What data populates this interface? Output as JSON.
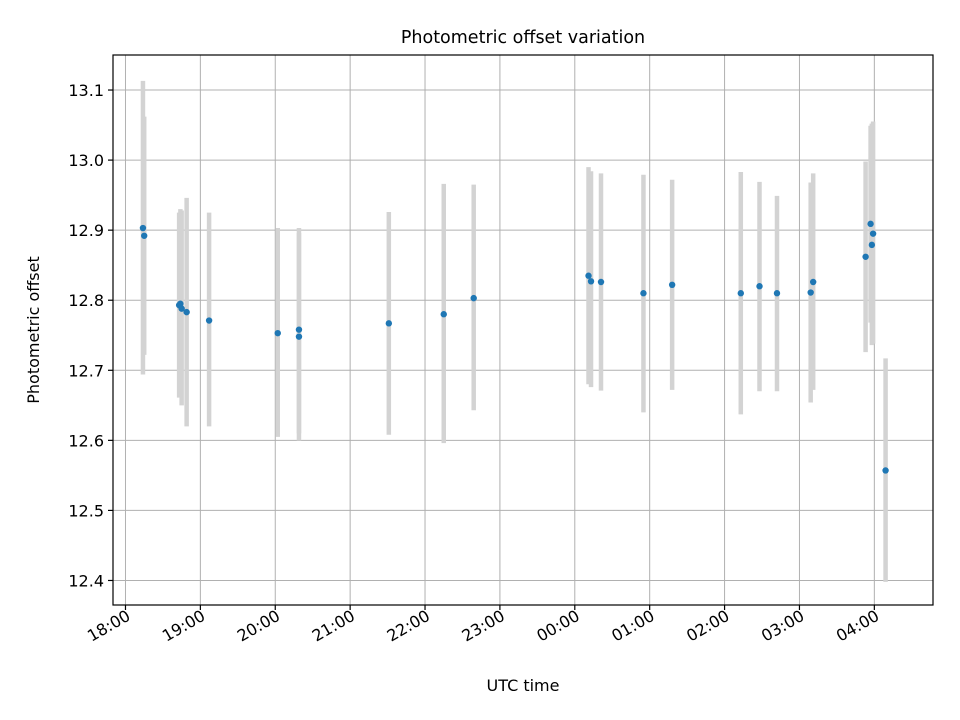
{
  "chart_data": {
    "type": "scatter",
    "title": "Photometric offset variation",
    "xlabel": "UTC time",
    "ylabel": "Photometric offset",
    "x_axis_type": "time",
    "xlim": [
      "17:50",
      "04:47"
    ],
    "ylim": [
      12.365,
      13.15
    ],
    "xticks": [
      "18:00",
      "19:00",
      "20:00",
      "21:00",
      "22:00",
      "23:00",
      "00:00",
      "01:00",
      "02:00",
      "03:00",
      "04:00"
    ],
    "yticks": [
      "12.4",
      "12.5",
      "12.6",
      "12.7",
      "12.8",
      "12.9",
      "13.0",
      "13.1"
    ],
    "grid": true,
    "marker_color": "#1f77b4",
    "errorbar_color": "#d3d3d3",
    "points": [
      {
        "t": "18:14",
        "y": 12.903,
        "lo": 12.694,
        "hi": 13.113
      },
      {
        "t": "18:15",
        "y": 12.892,
        "lo": 12.722,
        "hi": 13.062
      },
      {
        "t": "18:43",
        "y": 12.793,
        "lo": 12.661,
        "hi": 12.925
      },
      {
        "t": "18:44",
        "y": 12.795,
        "lo": 12.663,
        "hi": 12.93
      },
      {
        "t": "18:45",
        "y": 12.788,
        "lo": 12.65,
        "hi": 12.928
      },
      {
        "t": "18:49",
        "y": 12.783,
        "lo": 12.62,
        "hi": 12.946
      },
      {
        "t": "19:07",
        "y": 12.771,
        "lo": 12.62,
        "hi": 12.925
      },
      {
        "t": "20:02",
        "y": 12.753,
        "lo": 12.605,
        "hi": 12.903
      },
      {
        "t": "20:19",
        "y": 12.758,
        "lo": 12.61,
        "hi": 12.903
      },
      {
        "t": "20:19",
        "y": 12.748,
        "lo": 12.6,
        "hi": 12.896
      },
      {
        "t": "21:31",
        "y": 12.767,
        "lo": 12.608,
        "hi": 12.926
      },
      {
        "t": "22:15",
        "y": 12.78,
        "lo": 12.596,
        "hi": 12.966
      },
      {
        "t": "22:39",
        "y": 12.803,
        "lo": 12.643,
        "hi": 12.965
      },
      {
        "t": "00:11",
        "y": 12.835,
        "lo": 12.68,
        "hi": 12.99
      },
      {
        "t": "00:13",
        "y": 12.827,
        "lo": 12.676,
        "hi": 12.984
      },
      {
        "t": "00:21",
        "y": 12.826,
        "lo": 12.671,
        "hi": 12.981
      },
      {
        "t": "00:55",
        "y": 12.81,
        "lo": 12.64,
        "hi": 12.979
      },
      {
        "t": "01:18",
        "y": 12.822,
        "lo": 12.672,
        "hi": 12.972
      },
      {
        "t": "02:13",
        "y": 12.81,
        "lo": 12.637,
        "hi": 12.983
      },
      {
        "t": "02:28",
        "y": 12.82,
        "lo": 12.67,
        "hi": 12.969
      },
      {
        "t": "02:42",
        "y": 12.81,
        "lo": 12.67,
        "hi": 12.949
      },
      {
        "t": "03:09",
        "y": 12.811,
        "lo": 12.654,
        "hi": 12.968
      },
      {
        "t": "03:11",
        "y": 12.826,
        "lo": 12.672,
        "hi": 12.981
      },
      {
        "t": "03:53",
        "y": 12.862,
        "lo": 12.726,
        "hi": 12.998
      },
      {
        "t": "03:57",
        "y": 12.909,
        "lo": 12.768,
        "hi": 13.049
      },
      {
        "t": "03:58",
        "y": 12.879,
        "lo": 12.736,
        "hi": 13.052
      },
      {
        "t": "03:59",
        "y": 12.895,
        "lo": 12.738,
        "hi": 13.055
      },
      {
        "t": "04:09",
        "y": 12.557,
        "lo": 12.398,
        "hi": 12.717
      }
    ]
  }
}
